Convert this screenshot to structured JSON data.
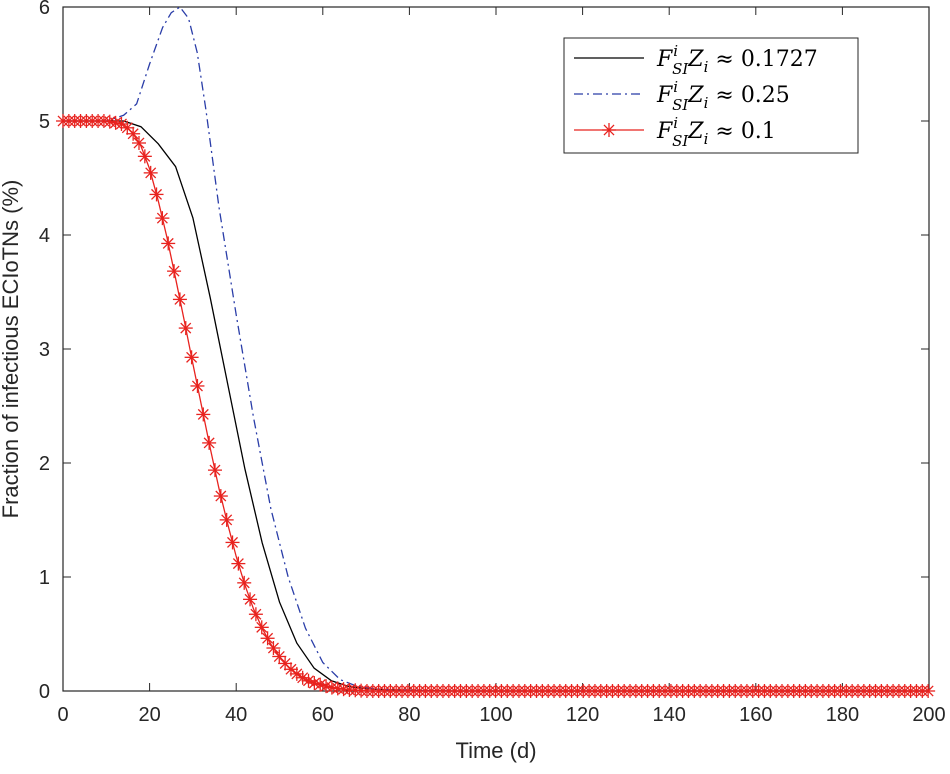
{
  "chart_data": {
    "type": "line",
    "xlabel": "Time (d)",
    "ylabel": "Fraction of infectious ECIoTNs (%)",
    "xlim": [
      0,
      200
    ],
    "ylim": [
      0,
      6
    ],
    "xticks": [
      0,
      20,
      40,
      60,
      80,
      100,
      120,
      140,
      160,
      180,
      200
    ],
    "yticks": [
      0,
      1,
      2,
      3,
      4,
      5,
      6
    ],
    "grid": false,
    "legend_position": "top-right",
    "series": [
      {
        "name": "F_SI^i Z_i ≈ 0.1727",
        "legend": {
          "main": "F",
          "sup": "i",
          "sub": "SI",
          "z": "Z",
          "zsub": "i",
          "approx": "≈",
          "value": "0.1727"
        },
        "color": "#000000",
        "style": "solid",
        "marker": "none",
        "x": [
          0,
          5,
          10,
          14,
          18,
          22,
          26,
          30,
          34,
          38,
          42,
          46,
          50,
          54,
          58,
          62,
          66,
          70,
          75,
          80,
          90,
          100,
          120,
          140,
          160,
          180,
          200
        ],
        "y": [
          5.0,
          5.0,
          5.0,
          5.0,
          4.95,
          4.8,
          4.6,
          4.15,
          3.45,
          2.7,
          1.95,
          1.3,
          0.78,
          0.42,
          0.2,
          0.09,
          0.04,
          0.02,
          0.01,
          0.005,
          0,
          0,
          0,
          0,
          0,
          0,
          0
        ]
      },
      {
        "name": "F_SI^i Z_i ≈ 0.25",
        "legend": {
          "main": "F",
          "sup": "i",
          "sub": "SI",
          "z": "Z",
          "zsub": "i",
          "approx": "≈",
          "value": "0.25"
        },
        "color": "#2a3da8",
        "style": "dashdot",
        "marker": "none",
        "x": [
          0,
          10,
          14,
          17,
          20,
          23,
          25,
          27,
          29,
          31,
          33,
          36,
          40,
          44,
          48,
          52,
          56,
          60,
          64,
          68,
          72,
          76,
          80,
          90,
          100,
          120,
          140,
          160,
          180,
          200
        ],
        "y": [
          5.0,
          5.0,
          5.05,
          5.15,
          5.5,
          5.82,
          5.95,
          6.0,
          5.9,
          5.6,
          5.1,
          4.25,
          3.3,
          2.4,
          1.6,
          1.0,
          0.55,
          0.25,
          0.1,
          0.04,
          0.02,
          0.01,
          0.005,
          0,
          0,
          0,
          0,
          0,
          0,
          0
        ]
      },
      {
        "name": "F_SI^i Z_i ≈ 0.1",
        "legend": {
          "main": "F",
          "sup": "i",
          "sub": "SI",
          "z": "Z",
          "zsub": "i",
          "approx": "≈",
          "value": "0.1"
        },
        "color": "#e8231f",
        "style": "solid",
        "marker": "asterisk",
        "x": [
          0,
          5,
          10,
          14,
          16,
          18,
          20,
          22,
          24,
          26,
          28,
          30,
          32,
          34,
          36,
          38,
          40,
          42,
          44,
          46,
          48,
          50,
          52,
          54,
          56,
          58,
          60,
          62,
          64,
          66,
          68,
          70,
          75,
          80,
          90,
          100,
          120,
          140,
          160,
          180,
          200
        ],
        "y": [
          5.0,
          5.0,
          5.0,
          4.97,
          4.9,
          4.78,
          4.58,
          4.3,
          3.98,
          3.62,
          3.25,
          2.87,
          2.5,
          2.13,
          1.78,
          1.47,
          1.18,
          0.93,
          0.72,
          0.55,
          0.41,
          0.3,
          0.21,
          0.15,
          0.1,
          0.07,
          0.05,
          0.03,
          0.02,
          0.01,
          0.005,
          0,
          0,
          0,
          0,
          0,
          0,
          0,
          0,
          0,
          0
        ]
      }
    ]
  }
}
